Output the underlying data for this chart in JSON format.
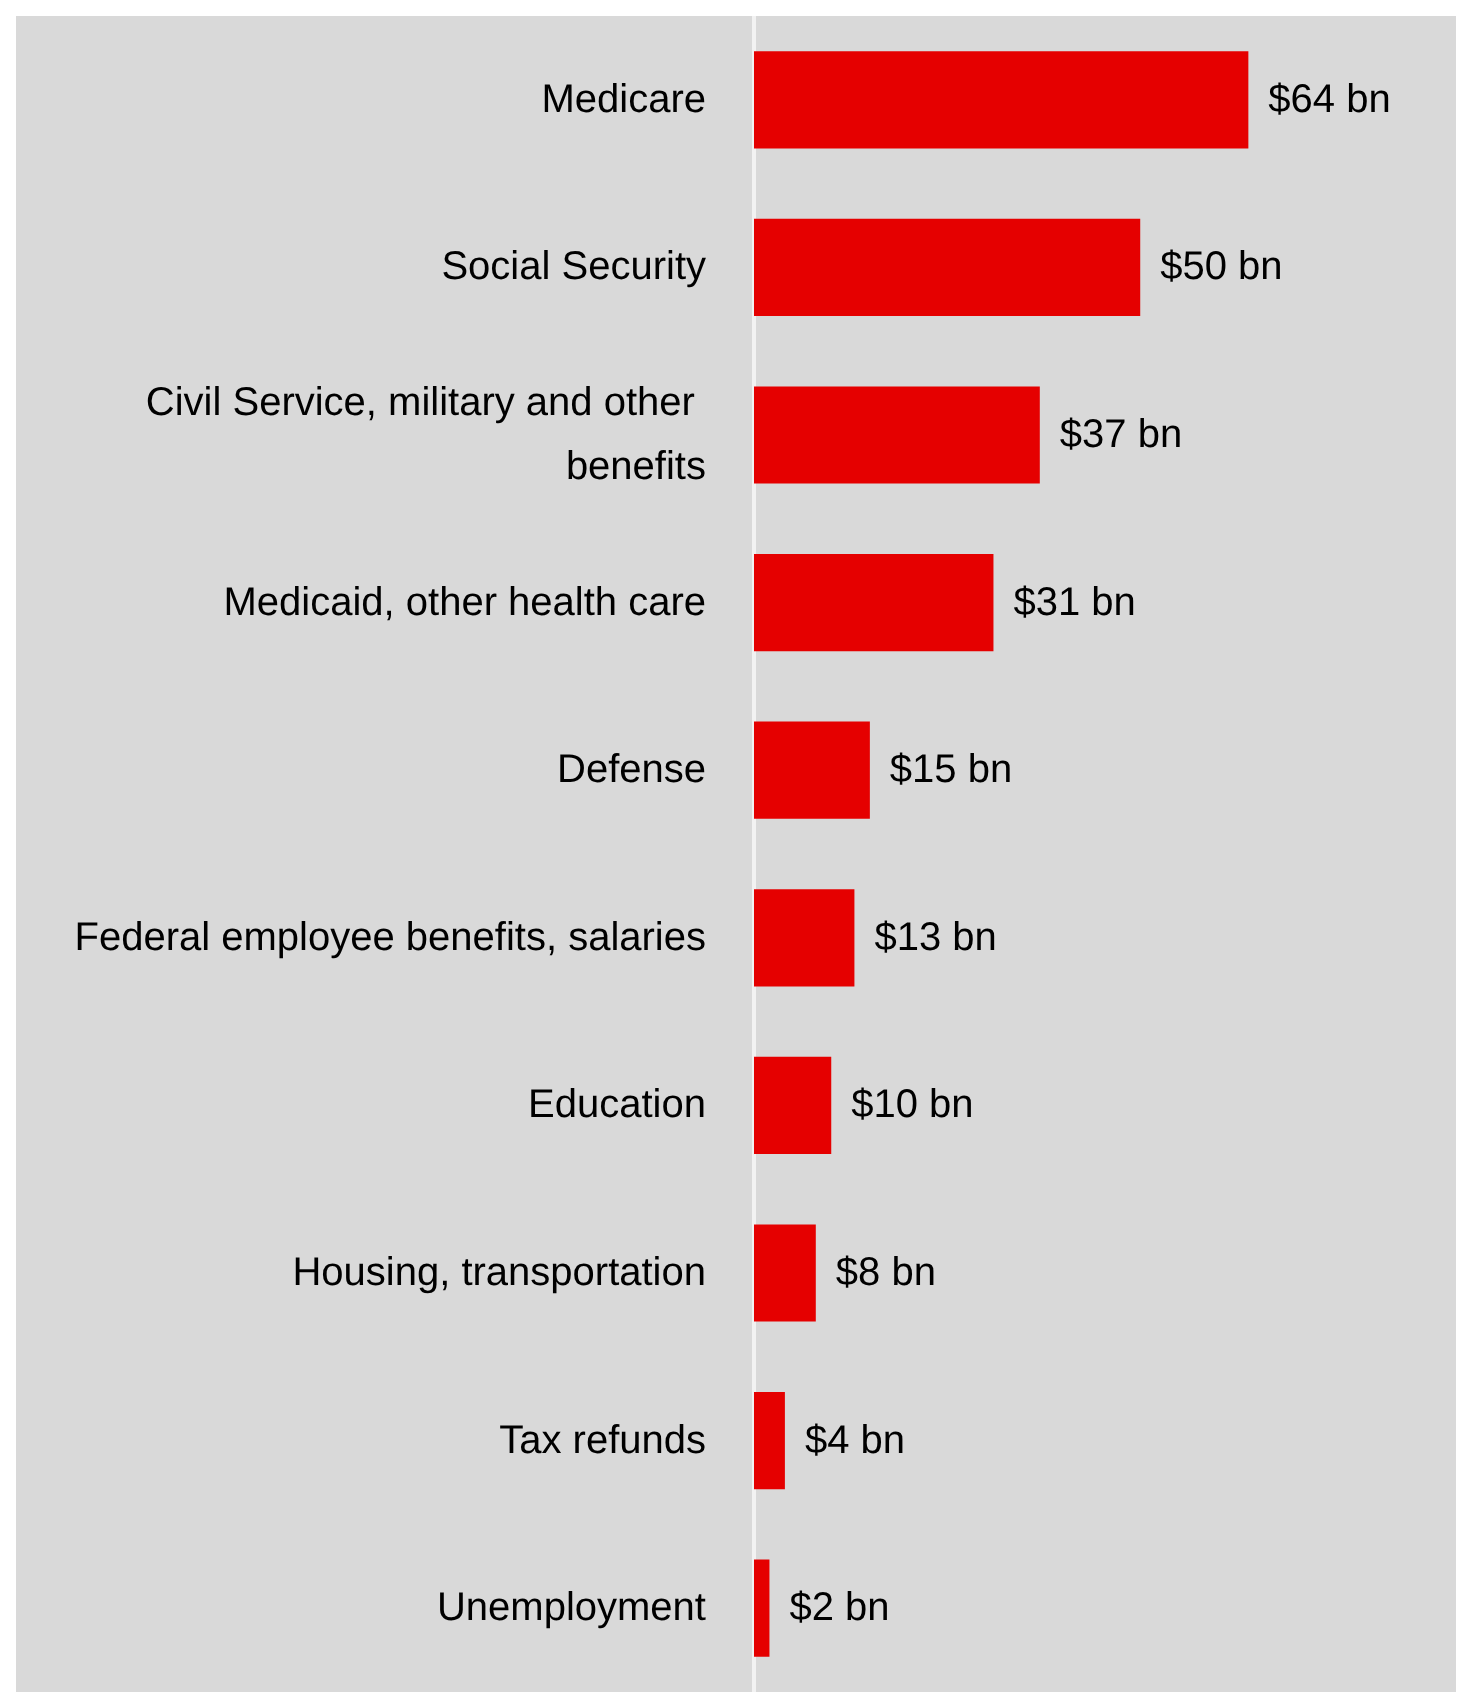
{
  "chart_data": {
    "type": "bar",
    "orientation": "horizontal",
    "categories": [
      "Medicare",
      "Social Security",
      "Civil Service, military and other benefits",
      "Medicaid, other health care",
      "Defense",
      "Federal employee benefits, salaries",
      "Education",
      "Housing, transportation",
      "Tax refunds",
      "Unemployment"
    ],
    "values": [
      64,
      50,
      37,
      31,
      15,
      13,
      10,
      8,
      4,
      2
    ],
    "value_labels": [
      "$64 bn",
      "$50 bn",
      "$37 bn",
      "$31 bn",
      "$15 bn",
      "$13 bn",
      "$10 bn",
      "$8 bn",
      "$4 bn",
      "$2 bn"
    ],
    "color": "#e50000"
  }
}
